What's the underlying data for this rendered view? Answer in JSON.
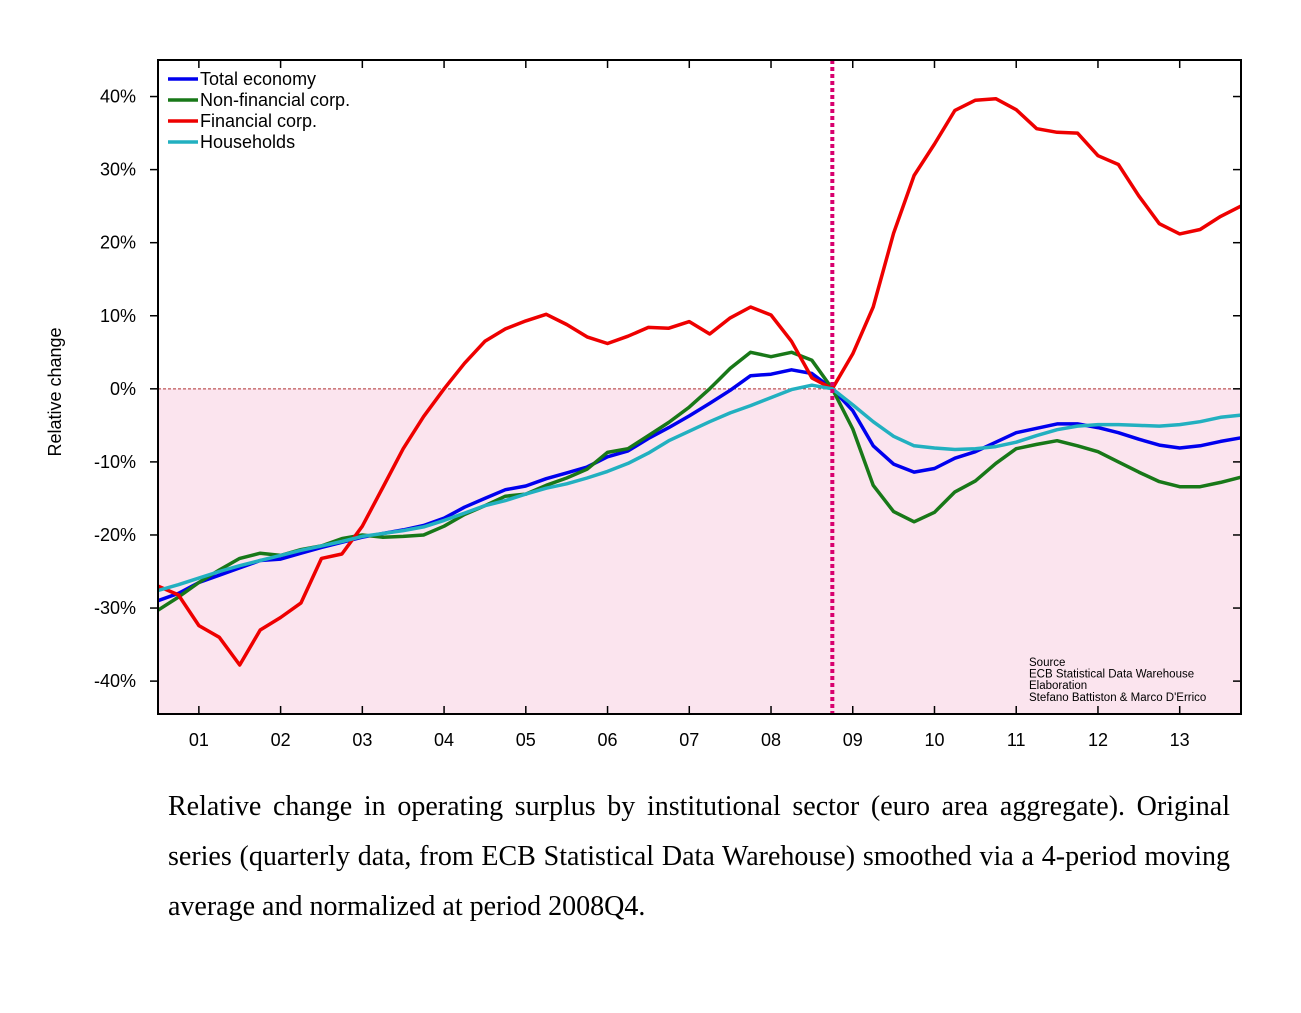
{
  "chart_data": {
    "type": "line",
    "ylabel": "Relative change",
    "x_tick_labels": [
      "01",
      "02",
      "03",
      "04",
      "05",
      "06",
      "07",
      "08",
      "09",
      "10",
      "11",
      "12",
      "13"
    ],
    "y_tick_labels": [
      "40%",
      "30%",
      "20%",
      "10%",
      "0%",
      "-10%",
      "-20%",
      "-30%",
      "-40%"
    ],
    "y_ticks": [
      40,
      30,
      20,
      10,
      0,
      -10,
      -20,
      -30,
      -40
    ],
    "xlim": [
      2000.5,
      2013.75
    ],
    "ylim": [
      -44.5,
      45
    ],
    "normalization_period": 2008.75,
    "negative_region_fill": "#fbe4ee",
    "zero_line_color": "#b03030",
    "vline_color": "#d8006e",
    "legend_position": "top-left",
    "source_lines": [
      "Source",
      "ECB Statistical Data Warehouse",
      "Elaboration",
      "Stefano Battiston & Marco D'Errico"
    ],
    "series": [
      {
        "name": "Total economy",
        "color": "#0000ee",
        "x": [
          2000.5,
          2000.75,
          2001,
          2001.25,
          2001.5,
          2001.75,
          2002,
          2002.25,
          2002.5,
          2002.75,
          2003,
          2003.25,
          2003.5,
          2003.75,
          2004,
          2004.25,
          2004.5,
          2004.75,
          2005,
          2005.25,
          2005.5,
          2005.75,
          2006,
          2006.25,
          2006.5,
          2006.75,
          2007,
          2007.25,
          2007.5,
          2007.75,
          2008,
          2008.25,
          2008.5,
          2008.75,
          2009,
          2009.25,
          2009.5,
          2009.75,
          2010,
          2010.25,
          2010.5,
          2010.75,
          2011,
          2011.25,
          2011.5,
          2011.75,
          2012,
          2012.25,
          2012.5,
          2012.75,
          2013,
          2013.25,
          2013.5,
          2013.75
        ],
        "values": [
          -29,
          -28,
          -26.5,
          -25.5,
          -24.5,
          -23.5,
          -23.3,
          -22.5,
          -21.7,
          -21,
          -20.3,
          -19.8,
          -19.3,
          -18.7,
          -17.7,
          -16.2,
          -15,
          -13.8,
          -13.3,
          -12.3,
          -11.5,
          -10.7,
          -9.3,
          -8.5,
          -6.8,
          -5.3,
          -3.7,
          -2,
          -0.2,
          1.8,
          2,
          2.6,
          2.1,
          0,
          -3,
          -7.8,
          -10.3,
          -11.4,
          -10.9,
          -9.5,
          -8.6,
          -7.3,
          -6,
          -5.4,
          -4.8,
          -4.8,
          -5.3,
          -6,
          -6.9,
          -7.7,
          -8.1,
          -7.8,
          -7.2,
          -6.7
        ]
      },
      {
        "name": "Non-financial corp.",
        "color": "#187818",
        "x": [
          2000.5,
          2000.75,
          2001,
          2001.25,
          2001.5,
          2001.75,
          2002,
          2002.25,
          2002.5,
          2002.75,
          2003,
          2003.25,
          2003.5,
          2003.75,
          2004,
          2004.25,
          2004.5,
          2004.75,
          2005,
          2005.25,
          2005.5,
          2005.75,
          2006,
          2006.25,
          2006.5,
          2006.75,
          2007,
          2007.25,
          2007.5,
          2007.75,
          2008,
          2008.25,
          2008.5,
          2008.75,
          2009,
          2009.25,
          2009.5,
          2009.75,
          2010,
          2010.25,
          2010.5,
          2010.75,
          2011,
          2011.25,
          2011.5,
          2011.75,
          2012,
          2012.25,
          2012.5,
          2012.75,
          2013,
          2013.25,
          2013.5,
          2013.75
        ],
        "values": [
          -30.3,
          -28.5,
          -26.5,
          -24.8,
          -23.2,
          -22.5,
          -22.8,
          -22,
          -21.5,
          -20.5,
          -20,
          -20.3,
          -20.2,
          -20,
          -18.8,
          -17.2,
          -16,
          -14.7,
          -14.4,
          -13.2,
          -12.2,
          -11,
          -8.7,
          -8.2,
          -6.4,
          -4.6,
          -2.5,
          0,
          2.8,
          5,
          4.4,
          5,
          3.9,
          0,
          -5.5,
          -13.2,
          -16.8,
          -18.2,
          -16.9,
          -14.1,
          -12.6,
          -10.2,
          -8.2,
          -7.6,
          -7.1,
          -7.8,
          -8.6,
          -10,
          -11.4,
          -12.7,
          -13.4,
          -13.4,
          -12.8,
          -12.1
        ]
      },
      {
        "name": "Financial corp.",
        "color": "#ee0000",
        "x": [
          2000.5,
          2000.75,
          2001,
          2001.25,
          2001.5,
          2001.75,
          2002,
          2002.25,
          2002.5,
          2002.75,
          2003,
          2003.25,
          2003.5,
          2003.75,
          2004,
          2004.25,
          2004.5,
          2004.75,
          2005,
          2005.25,
          2005.5,
          2005.75,
          2006,
          2006.25,
          2006.5,
          2006.75,
          2007,
          2007.25,
          2007.5,
          2007.75,
          2008,
          2008.25,
          2008.5,
          2008.75,
          2009,
          2009.25,
          2009.5,
          2009.75,
          2010,
          2010.25,
          2010.5,
          2010.75,
          2011,
          2011.25,
          2011.5,
          2011.75,
          2012,
          2012.25,
          2012.5,
          2012.75,
          2013,
          2013.25,
          2013.5,
          2013.75
        ],
        "values": [
          -27,
          -28.2,
          -32.4,
          -34,
          -37.8,
          -33,
          -31.3,
          -29.3,
          -23.2,
          -22.6,
          -18.8,
          -13.5,
          -8.2,
          -3.8,
          0,
          3.5,
          6.5,
          8.2,
          9.3,
          10.2,
          8.8,
          7.1,
          6.2,
          7.2,
          8.4,
          8.3,
          9.2,
          7.5,
          9.7,
          11.2,
          10.1,
          6.5,
          1.5,
          0,
          4.8,
          11.2,
          21.3,
          29.2,
          33.5,
          38.1,
          39.5,
          39.7,
          38.2,
          35.6,
          35.1,
          35,
          31.9,
          30.7,
          26.4,
          22.6,
          21.2,
          21.8,
          23.6,
          25
        ]
      },
      {
        "name": "Households",
        "color": "#22b0c0",
        "x": [
          2000.5,
          2000.75,
          2001,
          2001.25,
          2001.5,
          2001.75,
          2002,
          2002.25,
          2002.5,
          2002.75,
          2003,
          2003.25,
          2003.5,
          2003.75,
          2004,
          2004.25,
          2004.5,
          2004.75,
          2005,
          2005.25,
          2005.5,
          2005.75,
          2006,
          2006.25,
          2006.5,
          2006.75,
          2007,
          2007.25,
          2007.5,
          2007.75,
          2008,
          2008.25,
          2008.5,
          2008.75,
          2009,
          2009.25,
          2009.5,
          2009.75,
          2010,
          2010.25,
          2010.5,
          2010.75,
          2011,
          2011.25,
          2011.5,
          2011.75,
          2012,
          2012.25,
          2012.5,
          2012.75,
          2013,
          2013.25,
          2013.5,
          2013.75
        ],
        "values": [
          -27.6,
          -26.8,
          -25.9,
          -25,
          -24.2,
          -23.5,
          -22.8,
          -22.1,
          -21.5,
          -20.9,
          -20.2,
          -19.8,
          -19.4,
          -18.9,
          -18,
          -17,
          -16,
          -15.3,
          -14.4,
          -13.6,
          -13,
          -12.2,
          -11.3,
          -10.2,
          -8.8,
          -7.1,
          -5.8,
          -4.5,
          -3.3,
          -2.3,
          -1.2,
          -0.1,
          0.5,
          0,
          -2.2,
          -4.5,
          -6.5,
          -7.8,
          -8.1,
          -8.3,
          -8.2,
          -7.9,
          -7.3,
          -6.4,
          -5.6,
          -5.1,
          -4.9,
          -4.9,
          -5,
          -5.1,
          -4.9,
          -4.5,
          -3.9,
          -3.6
        ]
      }
    ]
  },
  "caption": {
    "text": "Relative change in operating surplus by institutional sector (euro area aggregate).  Original series (quarterly data, from ECB Statistical Data Warehouse) smoothed via a 4-period moving average and normalized at period 2008Q4."
  }
}
